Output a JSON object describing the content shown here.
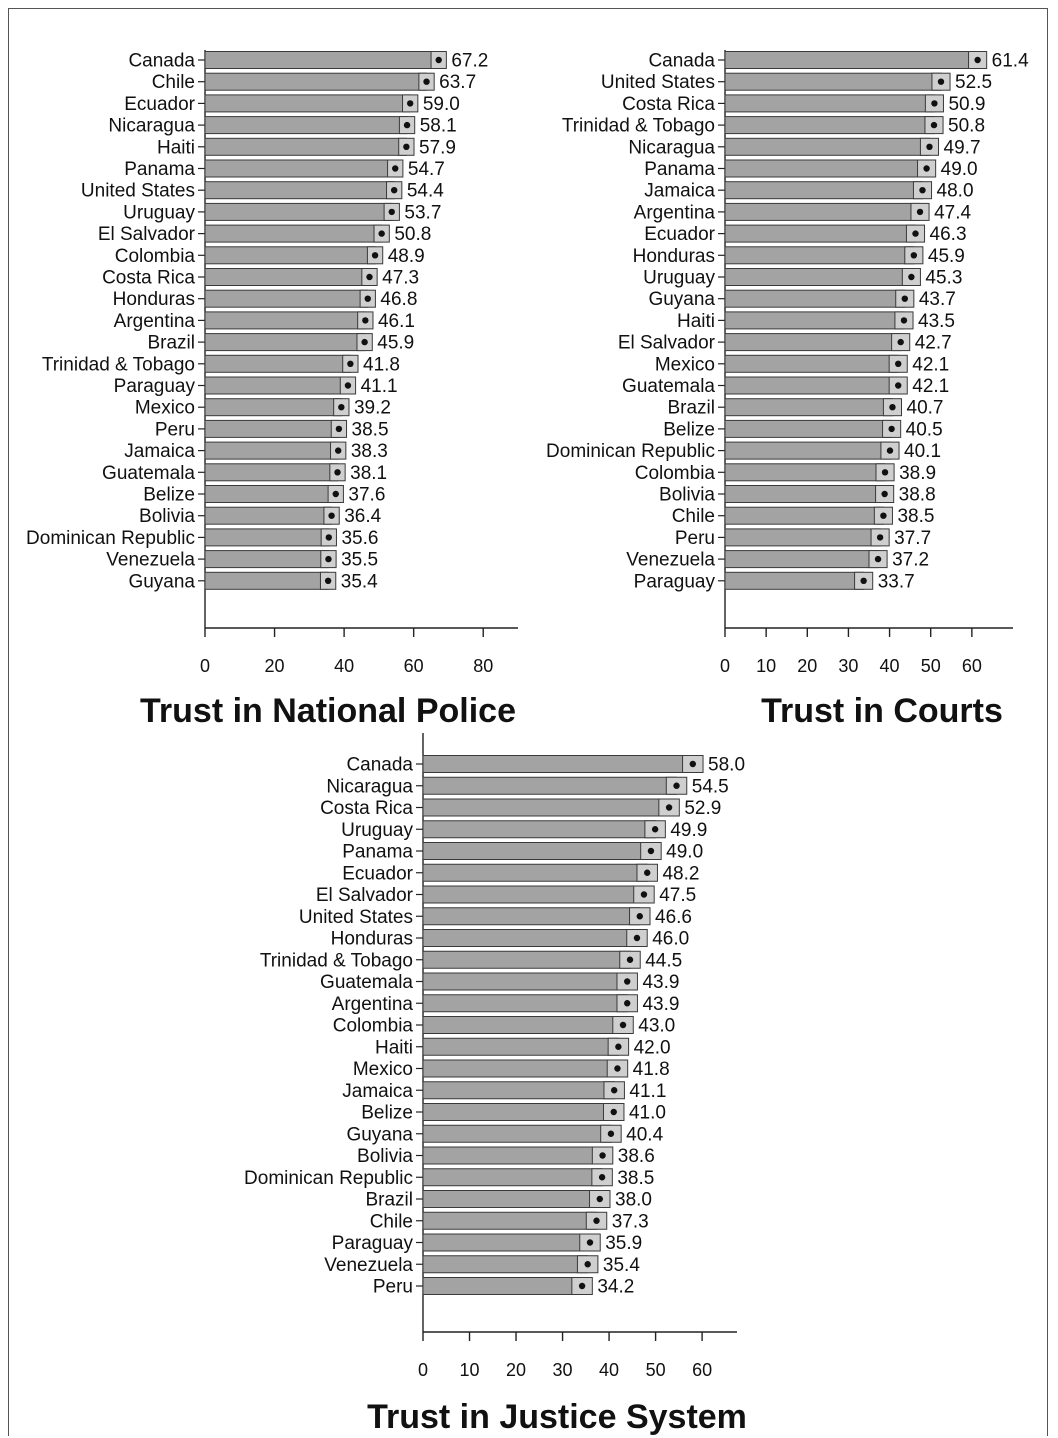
{
  "chart_data": [
    {
      "type": "bar",
      "title": "Trust in National Police",
      "categories": [
        "Canada",
        "Chile",
        "Ecuador",
        "Nicaragua",
        "Haiti",
        "Panama",
        "United States",
        "Uruguay",
        "El Salvador",
        "Colombia",
        "Costa Rica",
        "Honduras",
        "Argentina",
        "Brazil",
        "Trinidad & Tobago",
        "Paraguay",
        "Mexico",
        "Peru",
        "Jamaica",
        "Guatemala",
        "Belize",
        "Bolivia",
        "Dominican Republic",
        "Venezuela",
        "Guyana"
      ],
      "values": [
        67.2,
        63.7,
        59.0,
        58.1,
        57.9,
        54.7,
        54.4,
        53.7,
        50.8,
        48.9,
        47.3,
        46.8,
        46.1,
        45.9,
        41.8,
        41.1,
        39.2,
        38.5,
        38.3,
        38.1,
        37.6,
        36.4,
        35.6,
        35.5,
        35.4
      ],
      "value_labels": [
        "67.2",
        "63.7",
        "59.0",
        "58.1",
        "57.9",
        "54.7",
        "54.4",
        "53.7",
        "50.8",
        "48.9",
        "47.3",
        "46.8",
        "46.1",
        "45.9",
        "41.8",
        "41.1",
        "39.2",
        "38.5",
        "38.3",
        "38.1",
        "37.6",
        "36.4",
        "35.6",
        "35.5",
        "35.4"
      ],
      "xlim": [
        0,
        90
      ],
      "xticks": [
        0,
        20,
        40,
        60,
        80
      ],
      "xtick_labels": [
        "0",
        "20",
        "40",
        "60",
        "80"
      ]
    },
    {
      "type": "bar",
      "title": "Trust in Courts",
      "categories": [
        "Canada",
        "United States",
        "Costa Rica",
        "Trinidad & Tobago",
        "Nicaragua",
        "Panama",
        "Jamaica",
        "Argentina",
        "Ecuador",
        "Honduras",
        "Uruguay",
        "Guyana",
        "Haiti",
        "El Salvador",
        "Mexico",
        "Guatemala",
        "Brazil",
        "Belize",
        "Dominican Republic",
        "Colombia",
        "Bolivia",
        "Chile",
        "Peru",
        "Venezuela",
        "Paraguay"
      ],
      "values": [
        61.4,
        52.5,
        50.9,
        50.8,
        49.7,
        49.0,
        48.0,
        47.4,
        46.3,
        45.9,
        45.3,
        43.7,
        43.5,
        42.7,
        42.1,
        42.1,
        40.7,
        40.5,
        40.1,
        38.9,
        38.8,
        38.5,
        37.7,
        37.2,
        33.7
      ],
      "value_labels": [
        "61.4",
        "52.5",
        "50.9",
        "50.8",
        "49.7",
        "49.0",
        "48.0",
        "47.4",
        "46.3",
        "45.9",
        "45.3",
        "43.7",
        "43.5",
        "42.7",
        "42.1",
        "42.1",
        "40.7",
        "40.5",
        "40.1",
        "38.9",
        "38.8",
        "38.5",
        "37.7",
        "37.2",
        "33.7"
      ],
      "xlim": [
        0,
        70
      ],
      "xticks": [
        0,
        10,
        20,
        30,
        40,
        50,
        60
      ],
      "xtick_labels": [
        "0",
        "10",
        "20",
        "30",
        "40",
        "50",
        "60"
      ]
    },
    {
      "type": "bar",
      "title": "Trust in Justice System",
      "categories": [
        "Canada",
        "Nicaragua",
        "Costa Rica",
        "Uruguay",
        "Panama",
        "Ecuador",
        "El Salvador",
        "United States",
        "Honduras",
        "Trinidad & Tobago",
        "Guatemala",
        "Argentina",
        "Colombia",
        "Haiti",
        "Mexico",
        "Jamaica",
        "Belize",
        "Guyana",
        "Bolivia",
        "Dominican Republic",
        "Brazil",
        "Chile",
        "Paraguay",
        "Venezuela",
        "Peru"
      ],
      "values": [
        58.0,
        54.5,
        52.9,
        49.9,
        49.0,
        48.2,
        47.5,
        46.6,
        46.0,
        44.5,
        43.9,
        43.9,
        43.0,
        42.0,
        41.8,
        41.1,
        41.0,
        40.4,
        38.6,
        38.5,
        38.0,
        37.3,
        35.9,
        35.4,
        34.2
      ],
      "value_labels": [
        "58.0",
        "54.5",
        "52.9",
        "49.9",
        "49.0",
        "48.2",
        "47.5",
        "46.6",
        "46.0",
        "44.5",
        "43.9",
        "43.9",
        "43.0",
        "42.0",
        "41.8",
        "41.1",
        "41.0",
        "40.4",
        "38.6",
        "38.5",
        "38.0",
        "37.3",
        "35.9",
        "35.4",
        "34.2"
      ],
      "xlim": [
        0,
        67.5
      ],
      "xticks": [
        0,
        10,
        20,
        30,
        40,
        50,
        60
      ],
      "xtick_labels": [
        "0",
        "10",
        "20",
        "30",
        "40",
        "50",
        "60"
      ]
    }
  ],
  "colors": {
    "bar_fill": "#a3a3a3",
    "bar_stroke": "#3a3a3a",
    "ci_fill": "#cfcfcf",
    "dot": "#111111",
    "axis": "#222222",
    "text": "#111111"
  }
}
